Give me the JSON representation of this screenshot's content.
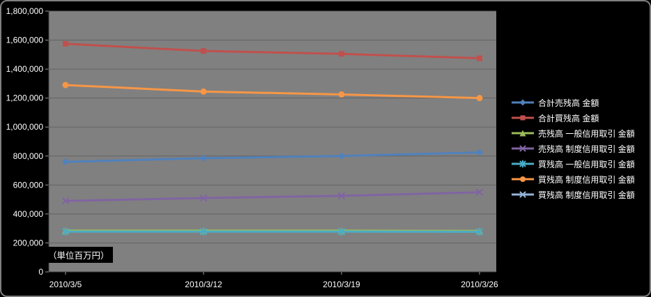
{
  "unit_note": "（単位百万円）",
  "chart_data": {
    "type": "line",
    "title": "",
    "xlabel": "",
    "ylabel": "",
    "x": [
      "2010/3/5",
      "2010/3/12",
      "2010/3/19",
      "2010/3/26"
    ],
    "ylim": [
      0,
      1800000
    ],
    "ytick_interval": 200000,
    "yticks": [
      "0",
      "200,000",
      "400,000",
      "600,000",
      "800,000",
      "1,000,000",
      "1,200,000",
      "1,400,000",
      "1,600,000",
      "1,800,000"
    ],
    "grid": "horizontal",
    "legend_position": "right",
    "plot_bg": "#808080",
    "gridline_color": "#636363",
    "axis_color": "#404040",
    "text_color": "#ffffff",
    "unit_note": "（単位百万円）",
    "series": [
      {
        "name": "合計売残高 金額",
        "color": "#4F81BD",
        "marker": "diamond",
        "values": [
          760000,
          785000,
          800000,
          825000
        ]
      },
      {
        "name": "合計買残高 金額",
        "color": "#C0504D",
        "marker": "square",
        "values": [
          1575000,
          1525000,
          1505000,
          1475000
        ]
      },
      {
        "name": "売残高 一般信用取引 金額",
        "color": "#9BBB59",
        "marker": "triangle",
        "values": [
          285000,
          285000,
          285000,
          283000
        ]
      },
      {
        "name": "売残高 制度信用取引 金額",
        "color": "#8064A2",
        "marker": "x",
        "values": [
          490000,
          510000,
          525000,
          550000
        ]
      },
      {
        "name": "買残高 一般信用取引 金額",
        "color": "#4BACC6",
        "marker": "star",
        "values": [
          278000,
          278000,
          278000,
          277000
        ]
      },
      {
        "name": "買残高 制度信用取引 金額",
        "color": "#F79646",
        "marker": "circle",
        "values": [
          1290000,
          1245000,
          1225000,
          1200000
        ]
      },
      {
        "name": "買残高 制度信用取引 金額",
        "color": "#95B3D7",
        "marker": "x",
        "values": []
      }
    ]
  }
}
